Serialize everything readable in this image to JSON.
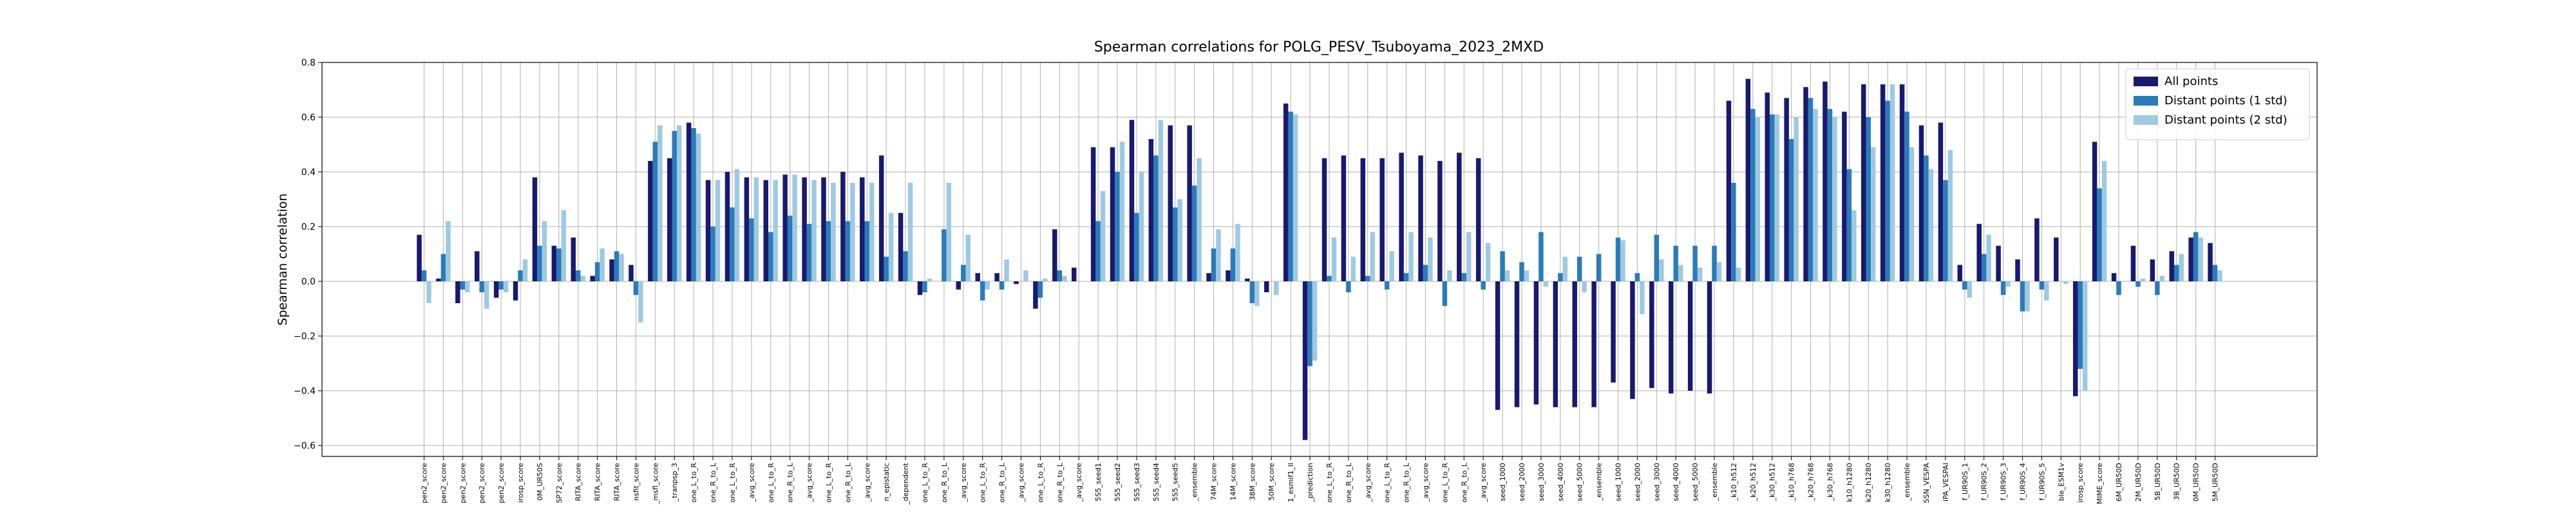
{
  "chart_data": {
    "type": "bar",
    "title": "Spearman correlations for POLG_PESV_Tsuboyama_2023_2MXD",
    "ylabel": "Spearman correlation",
    "categories": [
      "pen2_score",
      "pen2_score",
      "pen2_score",
      "pen2_score",
      "pen2_score",
      "irosp_score",
      "0M_UR50S",
      "SP72_score",
      "RITA_score",
      "RITA_score",
      "RITA_score",
      "nsfit_score",
      "_msfl_score",
      "_tranpsp_3",
      "one_L_to_R",
      "one_R_to_L",
      "one_L_to_R",
      "_avg_score",
      "one_L_to_R",
      "one_R_to_L",
      "_avg_score",
      "one_L_to_R",
      "one_R_to_L",
      "_avg_score",
      "n_epistatic",
      "_dependent",
      "one_L_to_R",
      "one_R_to_L",
      "_avg_score",
      "one_L_to_R",
      "one_R_to_L",
      "_avg_score",
      "one_L_to_R",
      "one_R_to_L",
      "_avg_score",
      "5S5_seed1",
      "5S5_seed2",
      "5S5_seed3",
      "5S5_seed4",
      "5S5_seed5",
      "_ensemble",
      "74M_score",
      "14M_score",
      "38M_score",
      "50M_score",
      "1_esmif1_ll",
      "_prediction",
      "one_L_to_R",
      "one_R_to_L",
      "_avg_score",
      "one_L_to_R",
      "one_R_to_L",
      "_avg_score",
      "one_L_to_R",
      "one_R_to_L",
      "_avg_score",
      "seed_1000",
      "seed_2000",
      "seed_3000",
      "seed_4000",
      "seed_5000",
      "_ensemble",
      "seed_1000",
      "seed_2000",
      "seed_3000",
      "seed_4000",
      "seed_5000",
      "_ensemble",
      "_k10_h512",
      "_k20_h512",
      "_k30_h512",
      "_k10_h768",
      "_k20_h768",
      "_k30_h768",
      "k10_h1280",
      "k20_h1280",
      "k30_h1280",
      "_ensemble",
      "SSN_VESPA",
      "iPA_VESPAl",
      "f_UR90S_1",
      "f_UR90S_2",
      "f_UR90S_3",
      "f_UR90S_4",
      "f_UR90S_5",
      "ble_ESM1v",
      "irosp_score",
      "MIME_score",
      "6M_UR50D",
      "2M_UR50D",
      "5B_UR50D",
      "3B_UR50D",
      "0M_UR50D",
      "5M_UR50D"
    ],
    "series": [
      {
        "name": "All points",
        "color": "#191970",
        "values": [
          0.17,
          0.01,
          -0.08,
          0.11,
          -0.06,
          -0.07,
          0.38,
          0.13,
          0.16,
          0.02,
          0.08,
          0.06,
          0.44,
          0.45,
          0.58,
          0.37,
          0.4,
          0.38,
          0.37,
          0.39,
          0.38,
          0.38,
          0.4,
          0.38,
          0.46,
          0.25,
          -0.05,
          0.0,
          -0.03,
          0.03,
          0.03,
          -0.01,
          -0.1,
          0.19,
          0.05,
          0.49,
          0.49,
          0.59,
          0.52,
          0.57,
          0.57,
          0.03,
          0.04,
          0.01,
          -0.04,
          0.65,
          -0.58,
          0.45,
          0.46,
          0.45,
          0.45,
          0.47,
          0.46,
          0.44,
          0.47,
          0.45,
          -0.47,
          -0.46,
          -0.45,
          -0.46,
          -0.46,
          -0.46,
          -0.37,
          -0.43,
          -0.39,
          -0.41,
          -0.4,
          -0.41,
          0.66,
          0.74,
          0.69,
          0.67,
          0.71,
          0.73,
          0.62,
          0.72,
          0.72,
          0.72,
          0.57,
          0.58,
          0.06,
          0.21,
          0.13,
          0.08,
          0.23,
          0.16,
          -0.42,
          0.51,
          0.03,
          0.13,
          0.08,
          0.11,
          0.16,
          0.14
        ]
      },
      {
        "name": "Distant points (1 std)",
        "color": "#2b7bba",
        "values": [
          0.04,
          0.1,
          -0.03,
          -0.04,
          -0.03,
          0.04,
          0.13,
          0.12,
          0.04,
          0.07,
          0.11,
          -0.05,
          0.51,
          0.55,
          0.56,
          0.2,
          0.27,
          0.23,
          0.18,
          0.24,
          0.21,
          0.22,
          0.22,
          0.22,
          0.09,
          0.11,
          -0.04,
          0.19,
          0.06,
          -0.07,
          -0.03,
          0.0,
          -0.06,
          0.04,
          0.0,
          0.22,
          0.4,
          0.25,
          0.46,
          0.27,
          0.35,
          0.12,
          0.12,
          -0.08,
          0.0,
          0.62,
          -0.31,
          0.02,
          -0.04,
          0.02,
          -0.03,
          0.03,
          0.06,
          -0.09,
          0.03,
          -0.03,
          0.11,
          0.07,
          0.18,
          0.03,
          0.09,
          0.1,
          0.16,
          0.03,
          0.17,
          0.13,
          0.13,
          0.13,
          0.36,
          0.63,
          0.61,
          0.52,
          0.67,
          0.63,
          0.41,
          0.6,
          0.66,
          0.62,
          0.46,
          0.37,
          -0.03,
          0.1,
          -0.05,
          -0.11,
          -0.03,
          0.0,
          -0.32,
          0.34,
          -0.05,
          -0.02,
          -0.05,
          0.06,
          0.18,
          0.06
        ]
      },
      {
        "name": "Distant points (2 std)",
        "color": "#9ecae1",
        "values": [
          -0.08,
          0.22,
          -0.04,
          -0.1,
          -0.04,
          0.08,
          0.22,
          0.26,
          0.02,
          0.12,
          0.1,
          -0.15,
          0.57,
          0.57,
          0.54,
          0.37,
          0.41,
          0.38,
          0.37,
          0.39,
          0.37,
          0.36,
          0.36,
          0.36,
          0.25,
          0.36,
          0.01,
          0.36,
          0.17,
          -0.03,
          0.08,
          0.04,
          0.01,
          0.02,
          0.0,
          0.33,
          0.51,
          0.4,
          0.59,
          0.3,
          0.45,
          0.19,
          0.21,
          -0.09,
          -0.05,
          0.61,
          -0.29,
          0.16,
          0.09,
          0.18,
          0.11,
          0.18,
          0.16,
          0.04,
          0.18,
          0.14,
          0.04,
          0.04,
          -0.02,
          0.09,
          -0.04,
          0.0,
          0.15,
          -0.12,
          0.08,
          0.06,
          0.05,
          0.07,
          0.05,
          0.6,
          0.61,
          0.6,
          0.63,
          0.6,
          0.26,
          0.49,
          0.72,
          0.49,
          0.41,
          0.48,
          -0.06,
          0.17,
          -0.02,
          -0.11,
          -0.07,
          -0.01,
          -0.4,
          0.44,
          0.0,
          0.01,
          0.02,
          0.1,
          0.16,
          0.04
        ]
      }
    ],
    "ylim": [
      -0.64,
      0.8
    ],
    "yticks": [
      {
        "value": -0.6,
        "label": "−0.6"
      },
      {
        "value": -0.4,
        "label": "−0.4"
      },
      {
        "value": -0.2,
        "label": "−0.2"
      },
      {
        "value": 0,
        "label": "0.0"
      },
      0.2,
      0.4,
      0.6,
      0.8
    ],
    "grid": true,
    "legend": "upper right"
  }
}
